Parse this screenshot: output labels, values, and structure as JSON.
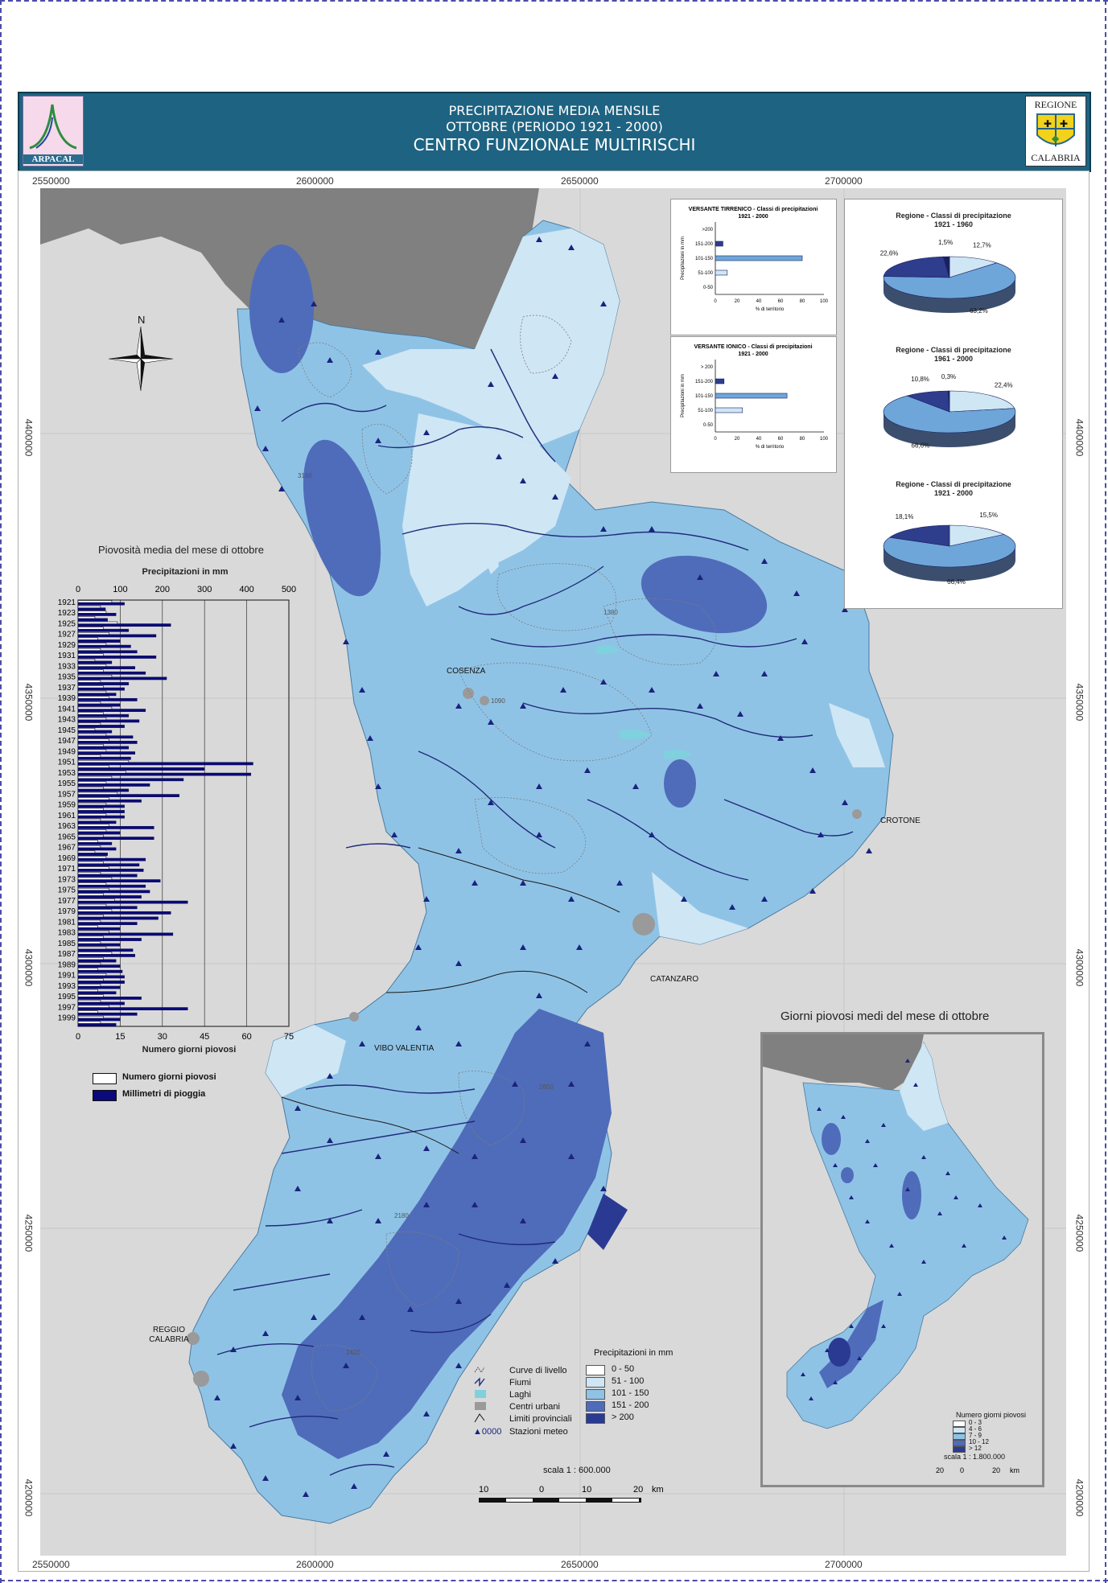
{
  "header": {
    "line1": "PRECIPITAZIONE MEDIA MENSILE",
    "line2": "OTTOBRE (PERIODO 1921 - 2000)",
    "line3": "CENTRO FUNZIONALE MULTIRISCHI",
    "logo_left": "ARPACAL",
    "logo_right_top": "REGIONE",
    "logo_right_bottom": "CALABRIA"
  },
  "coords": {
    "x_ticks": [
      "2550000",
      "2600000",
      "2650000",
      "2700000"
    ],
    "y_ticks": [
      "4400000",
      "4350000",
      "4300000",
      "4250000",
      "4200000"
    ]
  },
  "north_label": "N",
  "cities": {
    "cosenza": "COSENZA",
    "crotone": "CROTONE",
    "catanzaro": "CATANZARO",
    "vibo": "VIBO VALENTIA",
    "reggio": "REGGIO\nCALABRIA"
  },
  "legend_main": {
    "items": [
      "Curve di livello",
      "Fiumi",
      "Laghi",
      "Centri urbani",
      "Limiti provinciali",
      "Stazioni meteo"
    ],
    "station_symbol": "▲0000",
    "classes_title": "Precipitazioni in mm",
    "classes": [
      "0 - 50",
      "51 - 100",
      "101 - 150",
      "151 - 200",
      "> 200"
    ],
    "class_colors": [
      "#ffffff",
      "#cfe6f4",
      "#8fc3e6",
      "#4f6cba",
      "#2a3a93"
    ]
  },
  "scale_main": {
    "label": "scala 1 : 600.000",
    "ticks": [
      "10",
      "0",
      "10",
      "20",
      "km"
    ]
  },
  "bar_charts": [
    {
      "title": "VERSANTE TIRRENICO - Classi di precipitazioni",
      "subtitle": "1921 - 2000",
      "ylabel": "Precipitazioni in mm",
      "xlabel": "% di territorio",
      "categories": [
        ">200",
        "151-200",
        "101-150",
        "51-100",
        "0-50"
      ],
      "values": [
        0,
        7,
        80,
        11,
        0
      ],
      "x_ticks": [
        "0",
        "20",
        "40",
        "60",
        "80",
        "100"
      ]
    },
    {
      "title": "VERSANTE IONICO - Classi di precipitazioni",
      "subtitle": "1921 - 2000",
      "ylabel": "Precipitazioni in mm",
      "xlabel": "% di territorio",
      "categories": [
        "> 200",
        "151-200",
        "101-150",
        "51-100",
        "0-50"
      ],
      "values": [
        0,
        8,
        66,
        25,
        0
      ],
      "x_ticks": [
        "0",
        "20",
        "40",
        "60",
        "80",
        "100"
      ]
    }
  ],
  "pies": [
    {
      "title": "Regione - Classi di precipitazione",
      "period": "1921 - 1960",
      "slices": [
        {
          "label": "12,7%",
          "value": 12.7,
          "color": "#cfe6f4"
        },
        {
          "label": "63,2%",
          "value": 63.2,
          "color": "#6ea6d9"
        },
        {
          "label": "22,6%",
          "value": 22.6,
          "color": "#2e3d8c"
        },
        {
          "label": "1,5%",
          "value": 1.5,
          "color": "#1a2060"
        }
      ]
    },
    {
      "title": "Regione - Classi di precipitazione",
      "period": "1961 - 2000",
      "slices": [
        {
          "label": "22,4%",
          "value": 22.4,
          "color": "#cfe6f4"
        },
        {
          "label": "66,6%",
          "value": 66.6,
          "color": "#6ea6d9"
        },
        {
          "label": "10,8%",
          "value": 10.8,
          "color": "#2e3d8c"
        },
        {
          "label": "0,3%",
          "value": 0.3,
          "color": "#1a2060"
        }
      ]
    },
    {
      "title": "Regione - Classi di precipitazione",
      "period": "1921 - 2000",
      "slices": [
        {
          "label": "15,5%",
          "value": 15.5,
          "color": "#cfe6f4"
        },
        {
          "label": "66,4%",
          "value": 66.4,
          "color": "#6ea6d9"
        },
        {
          "label": "18,1%",
          "value": 18.1,
          "color": "#2e3d8c"
        }
      ]
    }
  ],
  "chart_data": {
    "type": "bar",
    "title": "Piovosità media del mese di ottobre",
    "top_axis_label": "Precipitazioni in mm",
    "bottom_axis_label": "Numero giorni piovosi",
    "top_ticks": [
      "0",
      "100",
      "200",
      "300",
      "400",
      "500"
    ],
    "bottom_ticks": [
      "0",
      "15",
      "30",
      "45",
      "60",
      "75"
    ],
    "xlim_mm": [
      0,
      500
    ],
    "xlim_days": [
      0,
      75
    ],
    "year_labels": [
      "1921",
      "1923",
      "1925",
      "1927",
      "1929",
      "1931",
      "1933",
      "1935",
      "1937",
      "1939",
      "1941",
      "1943",
      "1945",
      "1947",
      "1949",
      "1951",
      "1953",
      "1955",
      "1957",
      "1959",
      "1961",
      "1963",
      "1965",
      "1967",
      "1969",
      "1971",
      "1973",
      "1975",
      "1977",
      "1979",
      "1981",
      "1983",
      "1985",
      "1987",
      "1989",
      "1991",
      "1993",
      "1995",
      "1997",
      "1999"
    ],
    "years": [
      1921,
      1922,
      1923,
      1924,
      1925,
      1926,
      1927,
      1928,
      1929,
      1930,
      1931,
      1932,
      1933,
      1934,
      1935,
      1936,
      1937,
      1938,
      1939,
      1940,
      1941,
      1942,
      1943,
      1944,
      1945,
      1946,
      1947,
      1948,
      1949,
      1950,
      1951,
      1952,
      1953,
      1954,
      1955,
      1956,
      1957,
      1958,
      1959,
      1960,
      1961,
      1962,
      1963,
      1964,
      1965,
      1966,
      1967,
      1968,
      1969,
      1970,
      1971,
      1972,
      1973,
      1974,
      1975,
      1976,
      1977,
      1978,
      1979,
      1980,
      1981,
      1982,
      1983,
      1984,
      1985,
      1986,
      1987,
      1988,
      1989,
      1990,
      1991,
      1992,
      1993,
      1994,
      1995,
      1996,
      1997,
      1998,
      1999,
      2000
    ],
    "series": [
      {
        "name": "Numero giorni piovosi",
        "color": "#ffffff",
        "values": [
          12,
          8,
          10,
          6,
          14,
          9,
          11,
          7,
          10,
          8,
          9,
          6,
          10,
          9,
          12,
          8,
          9,
          10,
          11,
          8,
          12,
          9,
          10,
          8,
          6,
          10,
          11,
          9,
          10,
          8,
          18,
          11,
          17,
          12,
          10,
          9,
          14,
          11,
          10,
          9,
          10,
          8,
          11,
          10,
          9,
          7,
          8,
          6,
          10,
          9,
          11,
          8,
          12,
          10,
          11,
          9,
          13,
          10,
          12,
          9,
          8,
          7,
          11,
          9,
          8,
          10,
          12,
          9,
          8,
          7,
          10,
          9,
          8,
          7,
          9,
          8,
          11,
          7,
          9,
          8
        ]
      },
      {
        "name": "Millimetri di pioggia",
        "color": "#0a0a7a",
        "values": [
          110,
          65,
          90,
          70,
          220,
          120,
          185,
          100,
          125,
          140,
          185,
          80,
          135,
          160,
          210,
          120,
          110,
          90,
          140,
          100,
          160,
          120,
          145,
          110,
          80,
          130,
          140,
          120,
          135,
          125,
          415,
          300,
          410,
          250,
          170,
          120,
          240,
          150,
          110,
          110,
          110,
          90,
          180,
          100,
          180,
          80,
          90,
          70,
          160,
          145,
          155,
          140,
          195,
          160,
          170,
          150,
          260,
          140,
          220,
          190,
          140,
          100,
          225,
          150,
          100,
          130,
          135,
          90,
          100,
          105,
          110,
          110,
          100,
          90,
          150,
          110,
          260,
          140,
          100,
          90
        ]
      }
    ]
  },
  "legend_chart": {
    "days": "Numero giorni piovosi",
    "mm": "Millimetri di pioggia"
  },
  "inset": {
    "title": "Giorni piovosi medi del mese di ottobre",
    "legend_title": "Numero giorni piovosi",
    "classes": [
      "0 - 3",
      "4 - 6",
      "7 - 9",
      "10 - 12",
      "> 12"
    ],
    "class_colors": [
      "#ffffff",
      "#cfe6f4",
      "#8fc3e6",
      "#4f6cba",
      "#2a3a93"
    ],
    "scale_label": "scala 1 : 1.800.000",
    "scale_ticks": [
      "20",
      "0",
      "20",
      "km"
    ]
  }
}
